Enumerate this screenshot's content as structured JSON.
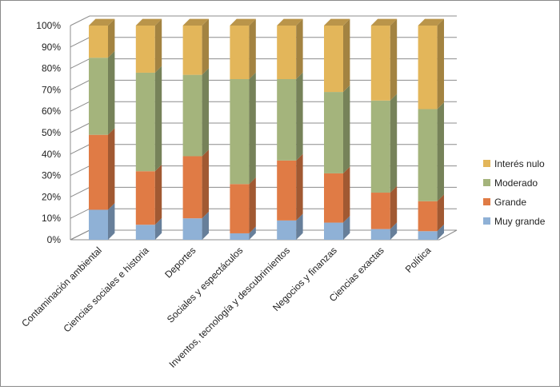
{
  "chart_data": {
    "type": "bar",
    "stacked": true,
    "percent_stacked": true,
    "three_d": true,
    "categories": [
      "Contaminación ambiental",
      "Ciencias sociales e historia",
      "Deportes",
      "Sociales y espectáculos",
      "Inventos, tecnología y descubrimientos",
      "Negocios y finanzas",
      "Ciencias exactas",
      "Política"
    ],
    "series": [
      {
        "name": "Muy grande",
        "color": "#8fb1d6",
        "values": [
          14,
          7,
          10,
          3,
          9,
          8,
          5,
          4
        ]
      },
      {
        "name": "Grande",
        "color": "#e07b45",
        "values": [
          35,
          25,
          29,
          23,
          28,
          23,
          17,
          14
        ]
      },
      {
        "name": "Moderado",
        "color": "#a4b47c",
        "values": [
          36,
          46,
          38,
          49,
          38,
          38,
          43,
          43
        ]
      },
      {
        "name": "Interés nulo",
        "color": "#e3b65a",
        "values": [
          15,
          22,
          23,
          25,
          25,
          31,
          35,
          39
        ]
      }
    ],
    "yticks": [
      "0%",
      "10%",
      "20%",
      "30%",
      "40%",
      "50%",
      "60%",
      "70%",
      "80%",
      "90%",
      "100%"
    ],
    "ylim": [
      0,
      100
    ],
    "grid": true,
    "legend_position": "right"
  }
}
